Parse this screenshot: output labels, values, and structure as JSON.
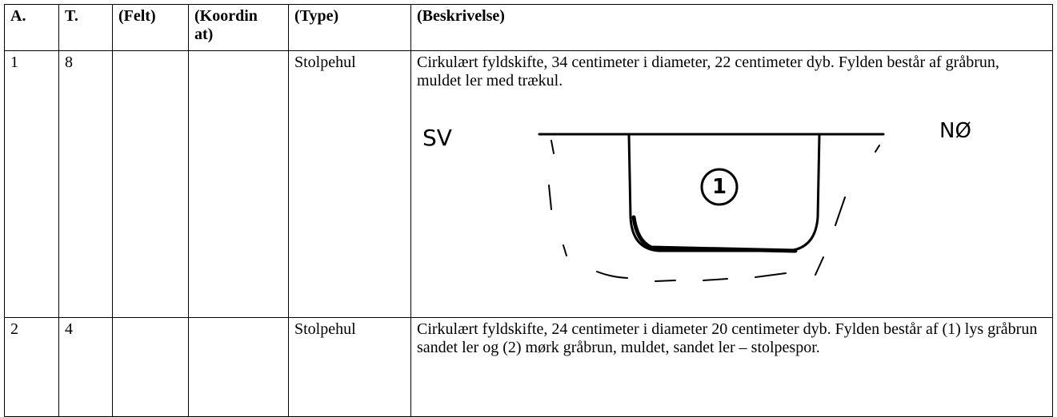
{
  "table": {
    "header": [
      "A.",
      "T.",
      "(Felt)",
      "(Koordinat)",
      "(Type)",
      "(Beskrivelse)"
    ],
    "rows": [
      [
        "1",
        "8",
        "",
        "",
        "Stolpehul",
        "Cirkulært fyldskifte, 34 centimeter i diameter, 22 centimeter dyb. Fylden består af gråbrun, muldet ler med trækul."
      ],
      [
        "2",
        "4",
        "",
        "",
        "Stolpehul",
        "Cirkulært fyldskifte, 24 centimeter i diameter 20 centimeter dyb. Fylden består af (1) lys gråbrun sandet ler og (2) mørk gråbrun, muldet, sandet ler – stolpespor."
      ]
    ]
  },
  "sketch": {
    "left_label": "SV",
    "right_label": "NØ",
    "layer_label": "1"
  }
}
